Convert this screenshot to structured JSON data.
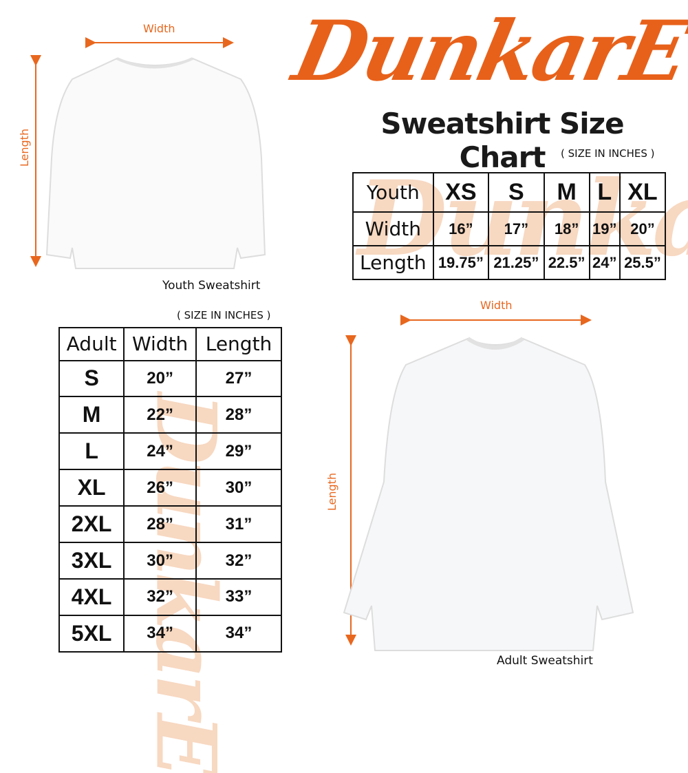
{
  "brand": {
    "logo_text": "DunkarE",
    "accent": "#e8611a"
  },
  "title": "Sweatshirt Size Chart",
  "youth": {
    "units": "( SIZE IN INCHES )",
    "caption": "Youth Sweatshirt",
    "width_label": "Width",
    "length_label": "Length",
    "headers": [
      "Youth",
      "XS",
      "S",
      "M",
      "L",
      "XL"
    ],
    "rows": [
      [
        "Width",
        "16”",
        "17”",
        "18”",
        "19”",
        "20”"
      ],
      [
        "Length",
        "19.75”",
        "21.25”",
        "22.5”",
        "24”",
        "25.5”"
      ]
    ]
  },
  "adult": {
    "units": "( SIZE IN INCHES )",
    "caption": "Adult Sweatshirt",
    "width_label": "Width",
    "length_label": "Length",
    "headers": [
      "Adult",
      "Width",
      "Length"
    ],
    "rows": [
      [
        "S",
        "20”",
        "27”"
      ],
      [
        "M",
        "22”",
        "28”"
      ],
      [
        "L",
        "24”",
        "29”"
      ],
      [
        "XL",
        "26”",
        "30”"
      ],
      [
        "2XL",
        "28”",
        "31”"
      ],
      [
        "3XL",
        "30”",
        "32”"
      ],
      [
        "4XL",
        "32”",
        "33”"
      ],
      [
        "5XL",
        "34”",
        "34”"
      ]
    ]
  }
}
